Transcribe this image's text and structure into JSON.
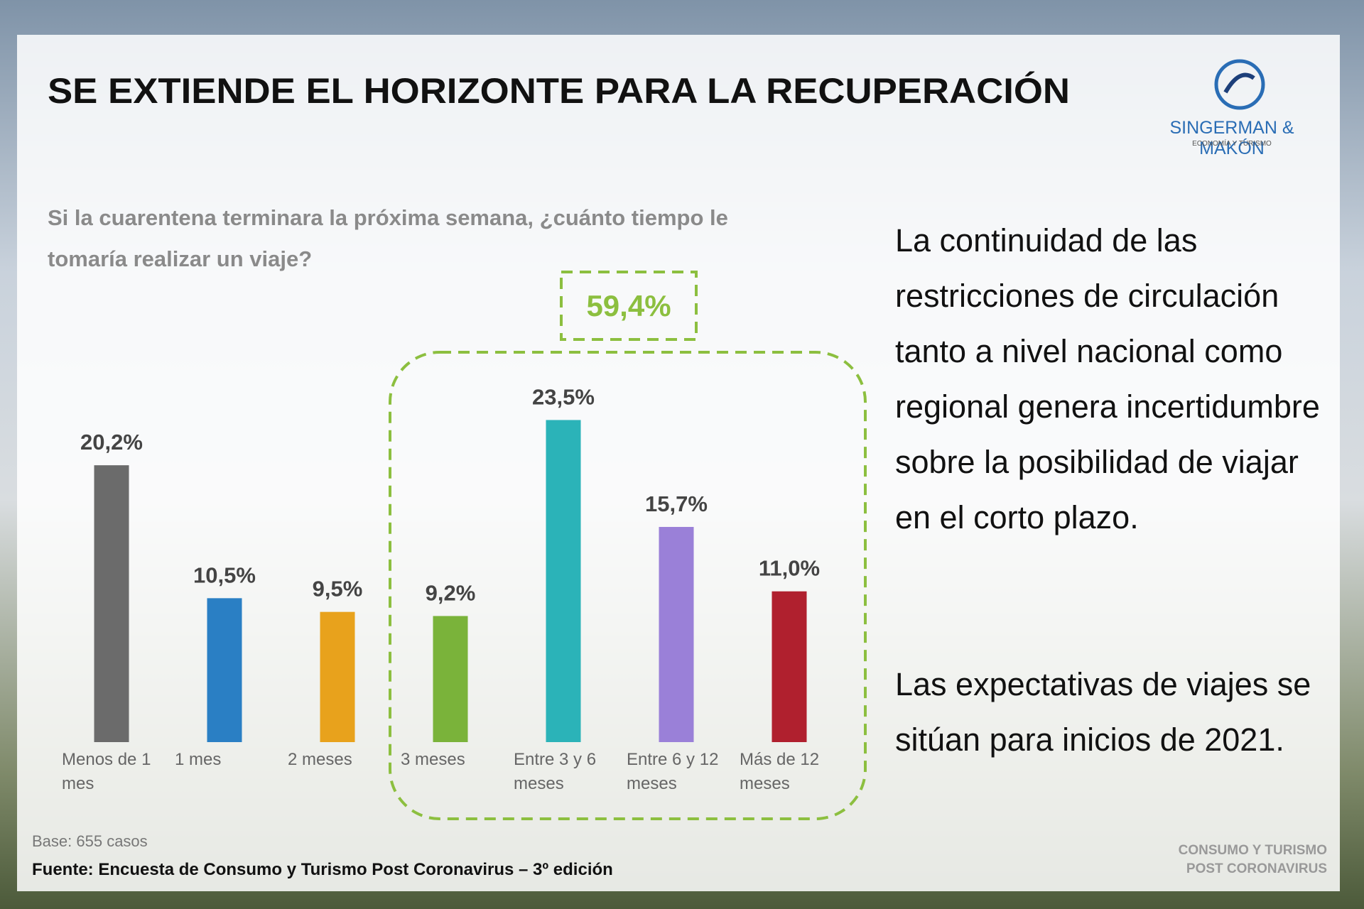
{
  "chart_data": {
    "type": "bar",
    "title": "SE EXTIENDE EL HORIZONTE PARA LA RECUPERACIÓN",
    "subtitle": "Si la cuarentena terminara la próxima semana, ¿cuánto tiempo le tomaría realizar un viaje?",
    "categories": [
      "Menos de 1 mes",
      "1 mes",
      "2 meses",
      "3 meses",
      "Entre 3 y 6 meses",
      "Entre 6 y 12 meses",
      "Más de 12 meses"
    ],
    "values": [
      20.2,
      10.5,
      9.5,
      9.2,
      23.5,
      15.7,
      11.0
    ],
    "value_labels": [
      "20,2%",
      "10,5%",
      "9,5%",
      "9,2%",
      "23,5%",
      "15,7%",
      "11,0%"
    ],
    "colors": [
      "#6b6b6b",
      "#2a7fc4",
      "#e8a21c",
      "#7ab33a",
      "#2bb3b8",
      "#9a80d8",
      "#b0202e"
    ],
    "annotation": "59,4%"
  },
  "slide": {
    "paragraphs": [
      "La continuidad de las restricciones de circulación tanto a nivel nacional como regional genera incertidumbre sobre la posibilidad de viajar en el corto plazo.",
      "Las expectativas de viajes se sitúan para inicios de 2021."
    ],
    "base": "Base: 655 casos",
    "source": "Fuente: Encuesta de Consumo y Turismo Post Coronavirus – 3º edición",
    "logo": {
      "name": "SINGERMAN & MAKÓN",
      "tagline": "ECONOMÍA Y TURISMO"
    },
    "footer": [
      "CONSUMO Y TURISMO",
      "POST CORONAVIRUS"
    ]
  }
}
